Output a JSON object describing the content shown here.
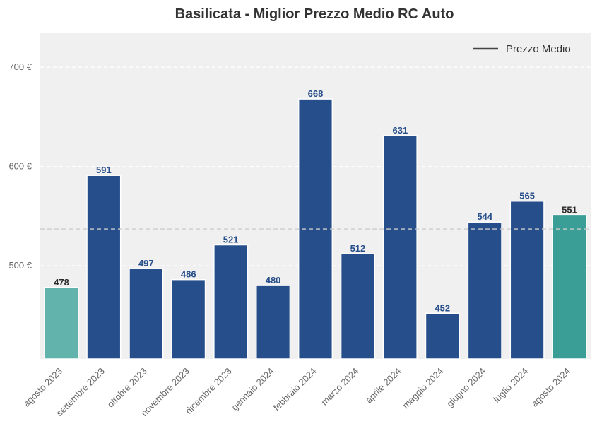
{
  "chart_data": {
    "type": "bar",
    "title": "Basilicata - Miglior Prezzo Medio RC Auto",
    "xlabel": "",
    "ylabel": "",
    "categories": [
      "agosto 2023",
      "settembre 2023",
      "ottobre 2023",
      "novembre 2023",
      "dicembre 2023",
      "gennaio 2024",
      "febbraio 2024",
      "marzo 2024",
      "aprile 2024",
      "maggio 2024",
      "giugno 2024",
      "luglio 2024",
      "agosto 2024"
    ],
    "values": [
      478,
      591,
      497,
      486,
      521,
      480,
      668,
      512,
      631,
      452,
      544,
      565,
      551
    ],
    "value_labels": [
      "478",
      "591",
      "497",
      "486",
      "521",
      "480",
      "668",
      "512",
      "631",
      "452",
      "544",
      "565",
      "551"
    ],
    "ylim": [
      406,
      735
    ],
    "yticks": [
      500,
      600,
      700
    ],
    "ytick_labels": [
      "500 €",
      "600 €",
      "700 €"
    ],
    "mean_line": 537,
    "legend": {
      "label": "Prezzo Medio",
      "position": "top-right"
    },
    "grid": true,
    "colors": {
      "bar_default": "#264E8A",
      "bar_first": "#63B3AD",
      "bar_last": "#3A9E96",
      "label_default": "#264E8A",
      "label_highlight": "#2B2B2B",
      "plot_bg": "#F0F0F0",
      "mean_line": "#CCCCCC"
    }
  }
}
